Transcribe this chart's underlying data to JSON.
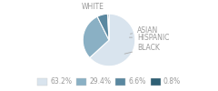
{
  "labels": [
    "WHITE",
    "BLACK",
    "HISPANIC",
    "ASIAN"
  ],
  "values": [
    63.2,
    29.4,
    6.6,
    0.8
  ],
  "colors": [
    "#d9e4ee",
    "#8ab0c4",
    "#5a88a0",
    "#2e5f74"
  ],
  "legend_labels": [
    "63.2%",
    "29.4%",
    "6.6%",
    "0.8%"
  ],
  "startangle": 90,
  "background_color": "#ffffff",
  "label_color": "#999999",
  "line_color": "#aaaaaa",
  "font_size": 5.5
}
